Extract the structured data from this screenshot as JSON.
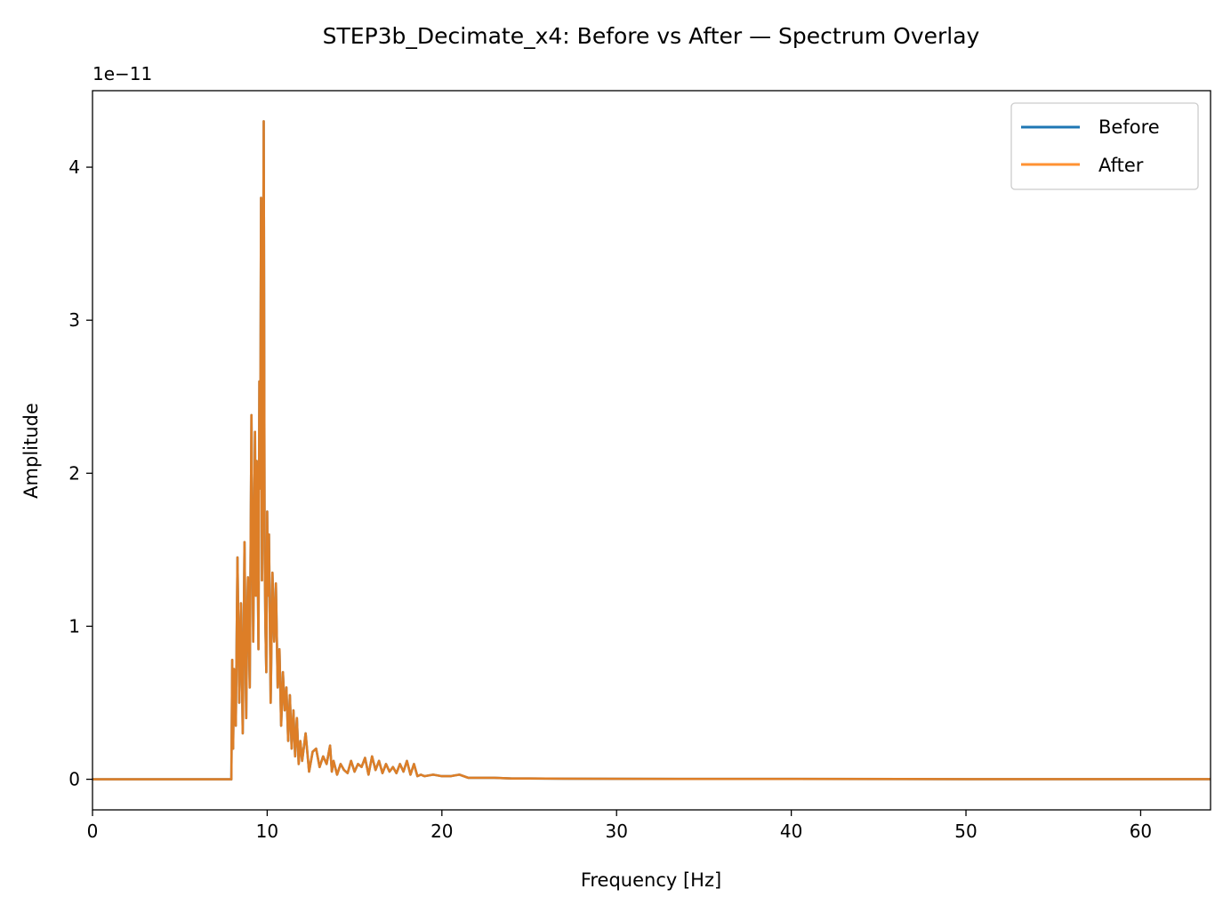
{
  "chart_data": {
    "type": "line",
    "title": "STEP3b_Decimate_x4: Before vs After — Spectrum Overlay",
    "xlabel": "Frequency [Hz]",
    "ylabel": "Amplitude",
    "y_offset_text": "1e−11",
    "xlim": [
      0,
      64
    ],
    "ylim": [
      -0.2,
      4.5
    ],
    "x_ticks": [
      0,
      10,
      20,
      30,
      40,
      50,
      60
    ],
    "y_ticks": [
      0,
      1,
      2,
      3,
      4
    ],
    "x_tick_labels": [
      "0",
      "10",
      "20",
      "30",
      "40",
      "50",
      "60"
    ],
    "y_tick_labels": [
      "0",
      "1",
      "2",
      "3",
      "4"
    ],
    "grid": false,
    "legend_position": "upper-right",
    "series": [
      {
        "name": "Before",
        "color": "#1f77b4",
        "x": [
          0,
          7.95,
          8.0,
          8.05,
          8.1,
          8.2,
          8.3,
          8.4,
          8.5,
          8.6,
          8.7,
          8.8,
          8.85,
          8.9,
          9.0,
          9.1,
          9.2,
          9.3,
          9.35,
          9.4,
          9.5,
          9.55,
          9.6,
          9.65,
          9.7,
          9.75,
          9.8,
          9.85,
          9.9,
          9.95,
          10.0,
          10.05,
          10.1,
          10.2,
          10.3,
          10.4,
          10.5,
          10.6,
          10.7,
          10.8,
          10.9,
          11.0,
          11.1,
          11.2,
          11.3,
          11.4,
          11.5,
          11.6,
          11.7,
          11.8,
          11.9,
          12.0,
          12.2,
          12.4,
          12.6,
          12.8,
          13.0,
          13.2,
          13.4,
          13.6,
          13.7,
          13.8,
          14.0,
          14.2,
          14.4,
          14.6,
          14.8,
          15.0,
          15.2,
          15.4,
          15.6,
          15.8,
          16.0,
          16.2,
          16.4,
          16.6,
          16.8,
          17.0,
          17.2,
          17.4,
          17.6,
          17.8,
          18.0,
          18.2,
          18.4,
          18.6,
          18.8,
          19.0,
          19.5,
          20.0,
          20.5,
          21.0,
          21.5,
          22.0,
          23.0,
          24.0,
          25.0,
          27.0,
          30.0,
          35.0,
          40.0,
          50.0,
          64.0
        ],
        "y": [
          0,
          0,
          0.78,
          0.2,
          0.72,
          0.35,
          1.45,
          0.5,
          1.15,
          0.3,
          1.55,
          0.4,
          1.0,
          1.32,
          0.6,
          2.38,
          0.9,
          2.27,
          1.2,
          2.08,
          0.85,
          2.6,
          1.9,
          3.8,
          1.3,
          2.5,
          4.3,
          1.5,
          1.0,
          0.7,
          1.75,
          1.2,
          1.6,
          0.5,
          1.35,
          0.9,
          1.28,
          0.6,
          0.85,
          0.35,
          0.7,
          0.45,
          0.6,
          0.25,
          0.55,
          0.2,
          0.45,
          0.15,
          0.4,
          0.1,
          0.25,
          0.12,
          0.3,
          0.05,
          0.18,
          0.2,
          0.08,
          0.15,
          0.1,
          0.22,
          0.05,
          0.12,
          0.03,
          0.1,
          0.06,
          0.04,
          0.12,
          0.05,
          0.1,
          0.08,
          0.14,
          0.03,
          0.15,
          0.06,
          0.12,
          0.04,
          0.1,
          0.05,
          0.08,
          0.04,
          0.1,
          0.05,
          0.12,
          0.03,
          0.1,
          0.02,
          0.03,
          0.02,
          0.03,
          0.02,
          0.02,
          0.03,
          0.01,
          0.01,
          0.01,
          0.005,
          0.005,
          0.004,
          0.003,
          0.002,
          0.002,
          0.001,
          0.001
        ]
      },
      {
        "name": "After",
        "color": "#ff7f0e",
        "x": [
          0,
          7.95,
          8.0,
          8.05,
          8.1,
          8.2,
          8.3,
          8.4,
          8.5,
          8.6,
          8.7,
          8.8,
          8.85,
          8.9,
          9.0,
          9.1,
          9.2,
          9.3,
          9.35,
          9.4,
          9.5,
          9.55,
          9.6,
          9.65,
          9.7,
          9.75,
          9.8,
          9.85,
          9.9,
          9.95,
          10.0,
          10.05,
          10.1,
          10.2,
          10.3,
          10.4,
          10.5,
          10.6,
          10.7,
          10.8,
          10.9,
          11.0,
          11.1,
          11.2,
          11.3,
          11.4,
          11.5,
          11.6,
          11.7,
          11.8,
          11.9,
          12.0,
          12.2,
          12.4,
          12.6,
          12.8,
          13.0,
          13.2,
          13.4,
          13.6,
          13.7,
          13.8,
          14.0,
          14.2,
          14.4,
          14.6,
          14.8,
          15.0,
          15.2,
          15.4,
          15.6,
          15.8,
          16.0,
          16.2,
          16.4,
          16.6,
          16.8,
          17.0,
          17.2,
          17.4,
          17.6,
          17.8,
          18.0,
          18.2,
          18.4,
          18.6,
          18.8,
          19.0,
          19.5,
          20.0,
          20.5,
          21.0,
          21.5,
          22.0,
          23.0,
          24.0,
          25.0,
          27.0,
          30.0,
          35.0,
          40.0,
          50.0,
          64.0
        ],
        "y": [
          0,
          0,
          0.78,
          0.2,
          0.72,
          0.35,
          1.45,
          0.5,
          1.15,
          0.3,
          1.55,
          0.4,
          1.0,
          1.32,
          0.6,
          2.38,
          0.9,
          2.27,
          1.2,
          2.08,
          0.85,
          2.6,
          1.9,
          3.8,
          1.3,
          2.5,
          4.3,
          1.5,
          1.0,
          0.7,
          1.75,
          1.2,
          1.6,
          0.5,
          1.35,
          0.9,
          1.28,
          0.6,
          0.85,
          0.35,
          0.7,
          0.45,
          0.6,
          0.25,
          0.55,
          0.2,
          0.45,
          0.15,
          0.4,
          0.1,
          0.25,
          0.12,
          0.3,
          0.05,
          0.18,
          0.2,
          0.08,
          0.15,
          0.1,
          0.22,
          0.05,
          0.12,
          0.03,
          0.1,
          0.06,
          0.04,
          0.12,
          0.05,
          0.1,
          0.08,
          0.14,
          0.03,
          0.15,
          0.06,
          0.12,
          0.04,
          0.1,
          0.05,
          0.08,
          0.04,
          0.1,
          0.05,
          0.12,
          0.03,
          0.1,
          0.02,
          0.03,
          0.02,
          0.03,
          0.02,
          0.02,
          0.03,
          0.01,
          0.01,
          0.01,
          0.005,
          0.005,
          0.004,
          0.003,
          0.002,
          0.002,
          0.001,
          0.001
        ]
      }
    ]
  }
}
